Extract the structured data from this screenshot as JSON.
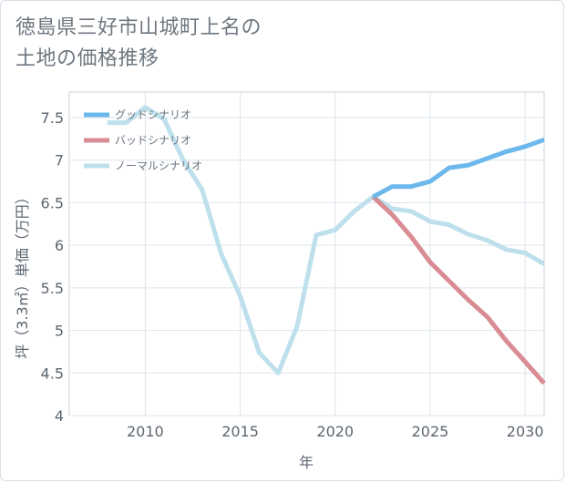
{
  "title_lines": [
    "徳島県三好市山城町上名の",
    "土地の価格推移"
  ],
  "chart_data": {
    "type": "line",
    "xlabel": "年",
    "ylabel": "坪（3.3㎡）単価（万円）",
    "xlim": [
      2006,
      2031
    ],
    "ylim": [
      4,
      7.8
    ],
    "x_ticks": [
      2010,
      2015,
      2020,
      2025,
      2030
    ],
    "y_ticks": [
      4,
      4.5,
      5,
      5.5,
      6,
      6.5,
      7,
      7.5
    ],
    "y_tick_labels": [
      "4",
      "4.5",
      "5",
      "5.5",
      "6",
      "6.5",
      "7",
      "7.5"
    ],
    "grid": true,
    "legend_position": "top-left",
    "series": [
      {
        "name": "グッドシナリオ",
        "color": "#6cb8ec",
        "x": [
          2022,
          2023,
          2024,
          2025,
          2026,
          2027,
          2028,
          2029,
          2030,
          2031
        ],
        "values": [
          6.57,
          6.69,
          6.69,
          6.75,
          6.91,
          6.94,
          7.02,
          7.1,
          7.16,
          7.24
        ]
      },
      {
        "name": "バッドシナリオ",
        "color": "#d98c93",
        "x": [
          2022,
          2023,
          2024,
          2025,
          2026,
          2027,
          2028,
          2029,
          2030,
          2031
        ],
        "values": [
          6.57,
          6.36,
          6.1,
          5.8,
          5.58,
          5.36,
          5.16,
          4.88,
          4.63,
          4.38
        ]
      },
      {
        "name": "ノーマルシナリオ",
        "color": "#bde0ec",
        "x": [
          2008,
          2009,
          2010,
          2011,
          2012,
          2013,
          2014,
          2015,
          2016,
          2017,
          2018,
          2019,
          2020,
          2021,
          2022,
          2023,
          2024,
          2025,
          2026,
          2027,
          2028,
          2029,
          2030,
          2031
        ],
        "values": [
          7.44,
          7.44,
          7.62,
          7.48,
          7.0,
          6.65,
          5.9,
          5.4,
          4.74,
          4.5,
          5.05,
          6.12,
          6.18,
          6.4,
          6.57,
          6.43,
          6.4,
          6.28,
          6.24,
          6.13,
          6.06,
          5.95,
          5.91,
          5.78
        ]
      }
    ]
  }
}
